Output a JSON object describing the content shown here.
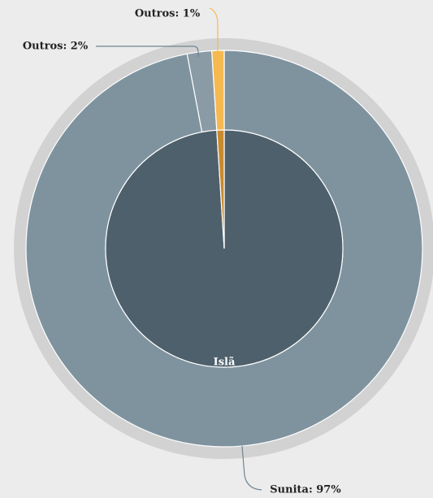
{
  "chart_data": {
    "type": "sunburst",
    "inner": {
      "categories": [
        "Islã",
        null
      ],
      "values": [
        99,
        1
      ],
      "colors": [
        "#4e606b",
        "#c98a2e"
      ]
    },
    "outer": {
      "values": [
        97,
        2,
        1
      ],
      "value_labels": [
        "Sunita: 97%",
        "Outros: 2%",
        "Outros: 1%"
      ],
      "colors": [
        "#7f939f",
        "#8a9ba6",
        "#f5b94f"
      ]
    }
  }
}
